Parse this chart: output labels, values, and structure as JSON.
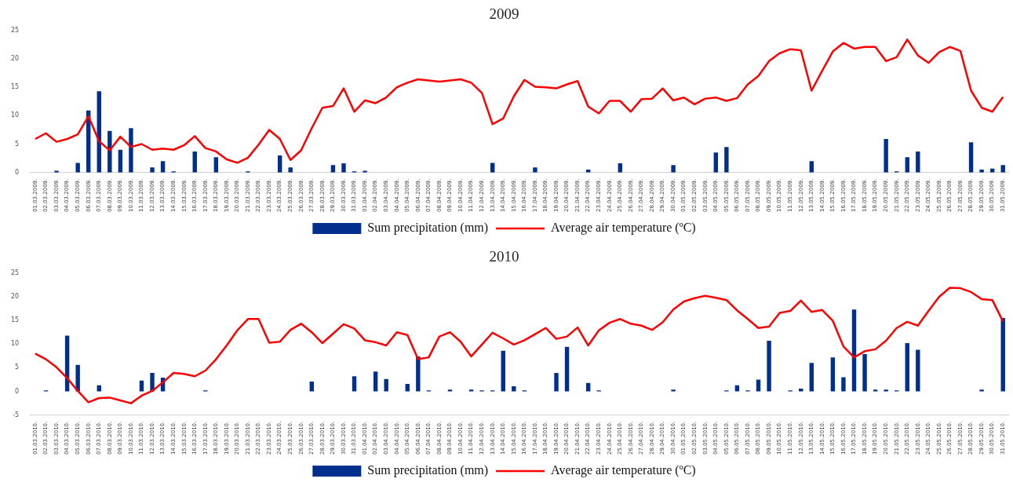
{
  "chart_data": [
    {
      "type": "bar",
      "title": "2009",
      "legend": "bottom",
      "marker": "none",
      "grid": false,
      "ylim": [
        0,
        25
      ],
      "yticks": [
        0,
        5,
        10,
        15,
        20,
        25
      ],
      "categories": [
        "01.03.2009.",
        "02.03.2009.",
        "03.03.2009.",
        "04.03.2009.",
        "05.03.2009.",
        "06.03.2009.",
        "07.03.2009.",
        "08.03.2009.",
        "09.03.2009.",
        "10.03.2009.",
        "11.03.2009.",
        "12.03.2009.",
        "13.03.2009.",
        "14.03.2009.",
        "15.03.2009.",
        "16.03.2009.",
        "17.03.2009.",
        "18.03.2009.",
        "19.03.2009.",
        "20.03.2009.",
        "21.03.2009.",
        "22.03.2009.",
        "23.03.2009.",
        "24.03.2009.",
        "25.03.2009.",
        "26.03.2009.",
        "27.03.2009.",
        "28.03.2009.",
        "29.03.2009.",
        "30.03.2009.",
        "31.03.2009.",
        "01.04.2009.",
        "02.04.2009.",
        "03.04.2009.",
        "04.04.2009.",
        "05.04.2009.",
        "06.04.2009.",
        "07.04.2009.",
        "08.04.2009.",
        "09.04.2009.",
        "10.04.2009.",
        "11.04.2009.",
        "12.04.2009.",
        "13.04.2009.",
        "14.04.2009.",
        "15.04.2009.",
        "16.04.2009.",
        "17.04.2009.",
        "18.04.2009.",
        "19.04.2009.",
        "20.04.2009.",
        "21.04.2009.",
        "22.04.2009.",
        "23.04.2009.",
        "24.04.2009.",
        "25.04.2009.",
        "26.04.2009.",
        "27.04.2009.",
        "28.04.2009.",
        "29.04.2009.",
        "30.04.2009.",
        "01.05.2009.",
        "02.05.2009.",
        "03.05.2009.",
        "04.05.2009.",
        "05.05.2009.",
        "06.05.2009.",
        "07.05.2009.",
        "08.05.2009.",
        "09.05.2009.",
        "10.05.2009.",
        "11.05.2009.",
        "12.05.2009.",
        "13.05.2009.",
        "14.05.2009.",
        "15.05.2009.",
        "16.05.2009.",
        "17.05.2009.",
        "18.05.2009.",
        "19.05.2009.",
        "20.05.2009.",
        "21.05.2009.",
        "22.05.2009.",
        "23.05.2009.",
        "24.05.2009.",
        "25.05.2009.",
        "26.05.2009.",
        "27.05.2009.",
        "28.05.2009.",
        "29.05.2009.",
        "30.05.2009.",
        "31.05.2009."
      ],
      "series": [
        {
          "name": "Sum precipitation (mm)",
          "color": "#002f8e",
          "values": [
            0,
            0,
            0.3,
            0,
            1.7,
            10.9,
            14.3,
            7.3,
            4.0,
            7.8,
            0,
            0.9,
            2.0,
            0.2,
            0,
            3.7,
            0,
            2.7,
            0,
            0,
            0.2,
            0,
            0,
            3.0,
            0.9,
            0,
            0,
            0,
            1.3,
            1.6,
            0.2,
            0.3,
            0,
            0,
            0,
            0,
            0,
            0,
            0,
            0,
            0,
            0,
            0,
            1.7,
            0,
            0,
            0,
            0.9,
            0,
            0,
            0,
            0,
            0.5,
            0,
            0,
            1.6,
            0,
            0,
            0,
            0,
            1.3,
            0,
            0,
            0,
            3.5,
            4.5,
            0,
            0,
            0,
            0,
            0,
            0,
            0,
            2.0,
            0,
            0,
            0,
            0,
            0,
            0,
            5.9,
            0.2,
            2.7,
            3.7,
            0,
            0,
            0,
            0,
            5.3,
            0.5,
            0.7,
            1.3
          ]
        },
        {
          "name": "Average air temperature (ºC)",
          "type": "line",
          "color": "#ff0000",
          "values": [
            5.9,
            6.9,
            5.4,
            5.9,
            6.7,
            9.9,
            5.5,
            3.9,
            6.3,
            4.5,
            5.0,
            4.0,
            4.2,
            4.0,
            4.8,
            6.4,
            4.3,
            3.7,
            2.3,
            1.7,
            2.6,
            4.9,
            7.5,
            5.9,
            2.2,
            3.9,
            7.8,
            11.4,
            11.7,
            14.8,
            10.7,
            12.7,
            12.2,
            13.2,
            15.0,
            15.8,
            16.4,
            16.2,
            16.0,
            16.2,
            16.4,
            15.8,
            14.0,
            8.5,
            9.5,
            13.4,
            16.3,
            15.1,
            15.0,
            14.8,
            15.5,
            16.1,
            11.6,
            10.4,
            12.6,
            12.6,
            10.7,
            12.9,
            13.0,
            14.8,
            12.7,
            13.2,
            12.0,
            13.0,
            13.2,
            12.6,
            13.1,
            15.5,
            17.0,
            19.6,
            21.0,
            21.7,
            21.5,
            14.4,
            17.9,
            21.3,
            22.8,
            21.8,
            22.1,
            22.1,
            19.6,
            20.3,
            23.4,
            20.6,
            19.3,
            21.2,
            22.1,
            21.4,
            14.4,
            11.4,
            10.7,
            13.3
          ]
        }
      ]
    },
    {
      "type": "bar",
      "title": "2010",
      "legend": "bottom",
      "marker": "none",
      "grid": false,
      "ylim": [
        -5,
        25
      ],
      "yticks": [
        -5,
        0,
        5,
        10,
        15,
        20,
        25
      ],
      "categories": [
        "01.03.2010.",
        "02.03.2010.",
        "03.03.2010.",
        "04.03.2010.",
        "05.03.2010.",
        "06.03.2010.",
        "07.03.2010.",
        "08.03.2010.",
        "09.03.2010.",
        "10.03.2010.",
        "11.03.2010.",
        "12.03.2010.",
        "13.03.2010.",
        "14.03.2010.",
        "15.03.2010.",
        "16.03.2010.",
        "17.03.2010.",
        "18.03.2010.",
        "19.03.2010.",
        "20.03.2010.",
        "21.03.2010.",
        "22.03.2010.",
        "23.03.2010.",
        "24.03.2010.",
        "25.03.2010.",
        "26.03.2010.",
        "27.03.2010.",
        "28.03.2010.",
        "29.03.2010.",
        "30.03.2010.",
        "31.03.2010.",
        "01.04.2010.",
        "02.04.2010.",
        "03.04.2010.",
        "04.04.2010.",
        "05.04.2010.",
        "06.04.2010.",
        "07.04.2010.",
        "08.04.2010.",
        "09.04.2010.",
        "10.04.2010.",
        "11.04.2010.",
        "12.04.2010.",
        "13.04.2010.",
        "14.04.2010.",
        "15.04.2010.",
        "16.04.2010.",
        "17.04.2010.",
        "18.04.2010.",
        "19.04.2010.",
        "20.04.2010.",
        "21.04.2010.",
        "22.04.2010.",
        "23.04.2010.",
        "24.04.2010.",
        "25.04.2010.",
        "26.04.2010.",
        "27.04.2010.",
        "28.04.2010.",
        "29.04.2010.",
        "30.04.2010.",
        "01.05.2010.",
        "02.05.2010.",
        "03.05.2010.",
        "04.05.2010.",
        "05.05.2010.",
        "06.05.2010.",
        "07.05.2010.",
        "08.05.2010.",
        "09.05.2010.",
        "10.05.2010.",
        "11.05.2010.",
        "12.05.2010.",
        "13.05.2010.",
        "14.05.2010.",
        "15.05.2010.",
        "16.05.2010.",
        "17.05.2010.",
        "18.05.2010.",
        "19.05.2010.",
        "20.05.2010.",
        "21.05.2010.",
        "22.05.2010.",
        "23.05.2010.",
        "24.05.2010.",
        "25.05.2010.",
        "26.05.2010.",
        "27.05.2010.",
        "28.05.2010.",
        "29.05.2010.",
        "30.05.2010.",
        "31.05.2010."
      ],
      "series": [
        {
          "name": "Sum precipitation (mm)",
          "color": "#002f8e",
          "values": [
            0,
            0.2,
            0,
            11.8,
            5.6,
            0,
            1.3,
            0,
            0,
            0,
            2.3,
            3.9,
            2.9,
            0,
            0,
            0,
            0.2,
            0,
            0,
            0,
            0,
            0,
            0,
            0,
            0,
            0,
            2.1,
            0,
            0,
            0,
            3.2,
            0,
            4.2,
            2.6,
            0,
            1.6,
            7.4,
            0.2,
            0,
            0.4,
            0,
            0.4,
            0.2,
            0.2,
            8.6,
            1.1,
            0.2,
            0,
            0,
            3.9,
            9.4,
            0,
            1.8,
            0.2,
            0,
            0,
            0,
            0,
            0,
            0,
            0.4,
            0,
            0,
            0,
            0,
            0.2,
            1.3,
            0.2,
            2.5,
            10.7,
            0,
            0.2,
            0.6,
            6.0,
            0,
            7.2,
            3.0,
            17.3,
            7.9,
            0.4,
            0.4,
            0.2,
            10.2,
            8.8,
            0,
            0,
            0,
            0,
            0,
            0.4,
            0,
            15.5
          ]
        },
        {
          "name": "Average air temperature (ºC)",
          "type": "line",
          "color": "#ff0000",
          "values": [
            8.0,
            6.8,
            5.1,
            2.8,
            0.1,
            -2.3,
            -1.4,
            -1.3,
            -1.9,
            -2.5,
            -0.9,
            0.1,
            1.9,
            3.9,
            3.7,
            3.2,
            4.4,
            6.8,
            9.7,
            12.9,
            15.3,
            15.3,
            10.3,
            10.5,
            13.0,
            14.3,
            12.5,
            10.2,
            12.2,
            14.2,
            13.3,
            10.8,
            10.4,
            9.7,
            12.5,
            11.9,
            6.8,
            7.2,
            11.6,
            12.5,
            10.5,
            7.4,
            9.9,
            12.4,
            11.2,
            9.9,
            10.8,
            12.1,
            13.4,
            11.1,
            11.6,
            13.5,
            9.7,
            12.9,
            14.5,
            15.3,
            14.3,
            13.9,
            13.0,
            14.6,
            17.3,
            19.0,
            19.7,
            20.2,
            19.8,
            19.3,
            17.1,
            15.3,
            13.4,
            13.7,
            16.6,
            17.0,
            19.2,
            16.8,
            17.2,
            14.9,
            9.5,
            7.2,
            8.5,
            8.9,
            10.7,
            13.4,
            14.7,
            13.9,
            17.0,
            20.0,
            21.9,
            21.8,
            21.0,
            19.5,
            19.3,
            14.8
          ]
        }
      ]
    }
  ]
}
